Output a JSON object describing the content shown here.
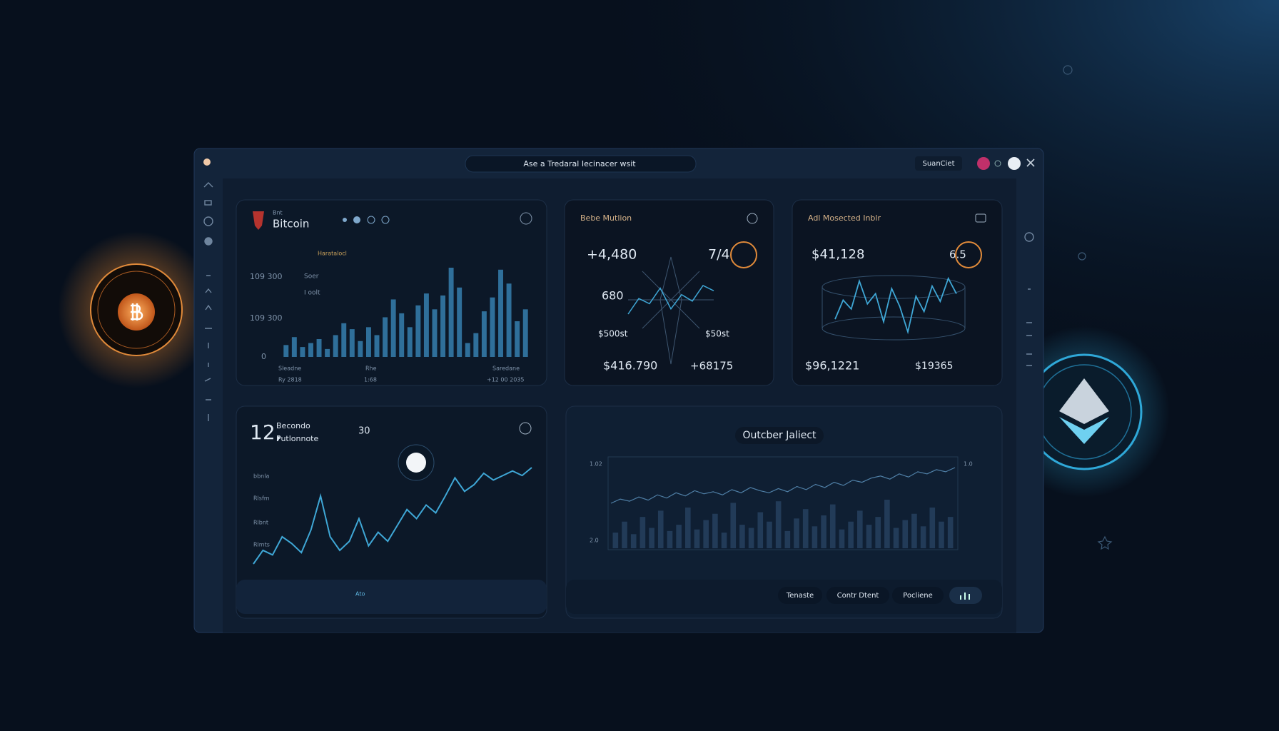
{
  "toolbar": {
    "search": "Ase a Tredaral Iecinacer wsit",
    "account": "SuanCiet"
  },
  "bitcoin_card": {
    "label": "Bnt",
    "title": "Bitcoin",
    "column_head": "Haratalocl",
    "legend": [
      "Soer",
      "I oolt"
    ],
    "y_labels": [
      "109 300",
      "109 300",
      "0"
    ],
    "x_labels": [
      "Sleadne",
      "Rhe",
      "Saredane"
    ],
    "footer": [
      "Ry 2818",
      "1:68",
      "+12 00 2035"
    ],
    "chart": {
      "type": "bar",
      "values": [
        12,
        20,
        10,
        14,
        18,
        8,
        22,
        34,
        28,
        16,
        30,
        22,
        40,
        58,
        44,
        30,
        52,
        64,
        48,
        62,
        90,
        70,
        14,
        24,
        46,
        60,
        88,
        74,
        36,
        48
      ]
    }
  },
  "mutation_card": {
    "title": "Bebe Mutlion",
    "main": "+4,480",
    "ratio": "7/4",
    "mid": "680",
    "left_sub": "$500st",
    "right_sub": "$50st",
    "left_total": "$416.790",
    "right_total": "+68175",
    "chart": {
      "type": "line",
      "values": [
        40,
        52,
        48,
        60,
        44,
        55,
        50,
        62,
        58
      ]
    }
  },
  "selected_card": {
    "title": "Adl Mosected Inblr",
    "main": "$41,128",
    "ratio": "6.5",
    "left_total": "$96,1221",
    "right_total": "$19365",
    "chart": {
      "type": "line",
      "values": [
        40,
        55,
        48,
        70,
        52,
        60,
        38,
        64,
        50,
        30,
        58,
        46,
        66,
        54,
        72,
        60
      ]
    }
  },
  "seconds_card": {
    "big": "12,",
    "line1": "Becondo",
    "line2": "Putlonnote",
    "badge": "30",
    "y_labels": [
      "bbnla",
      "Rlsfm",
      "Rlbnt",
      "Rlmts"
    ],
    "footer": "Ato",
    "chart": {
      "type": "line",
      "values": [
        10,
        22,
        18,
        34,
        28,
        20,
        40,
        70,
        34,
        22,
        30,
        50,
        26,
        38,
        30,
        44,
        58,
        50,
        62,
        55,
        70,
        86,
        74,
        80,
        90,
        84,
        88,
        92,
        88,
        95
      ]
    }
  },
  "subject_card": {
    "title": "Outcber Jaliect",
    "y_labels": [
      "1.02",
      "2.0"
    ],
    "y2_label": "1.0",
    "buttons": [
      "Tenaste",
      "Contr Dtent",
      "Pocliene"
    ],
    "chart": {
      "type": "line",
      "values": [
        40,
        44,
        42,
        46,
        43,
        48,
        45,
        50,
        47,
        52,
        49,
        51,
        48,
        53,
        50,
        55,
        52,
        50,
        54,
        51,
        56,
        53,
        58,
        55,
        60,
        57,
        62,
        60,
        64,
        66,
        63,
        68,
        65,
        70,
        68,
        72,
        70,
        74
      ]
    },
    "bars": {
      "type": "bar",
      "values": [
        20,
        34,
        18,
        40,
        26,
        48,
        22,
        30,
        52,
        24,
        36,
        44,
        20,
        58,
        30,
        26,
        46,
        34,
        60,
        22,
        38,
        50,
        28,
        42,
        56,
        24,
        34,
        48,
        30,
        40,
        62,
        26,
        36,
        44,
        28,
        52,
        34,
        40
      ]
    }
  }
}
